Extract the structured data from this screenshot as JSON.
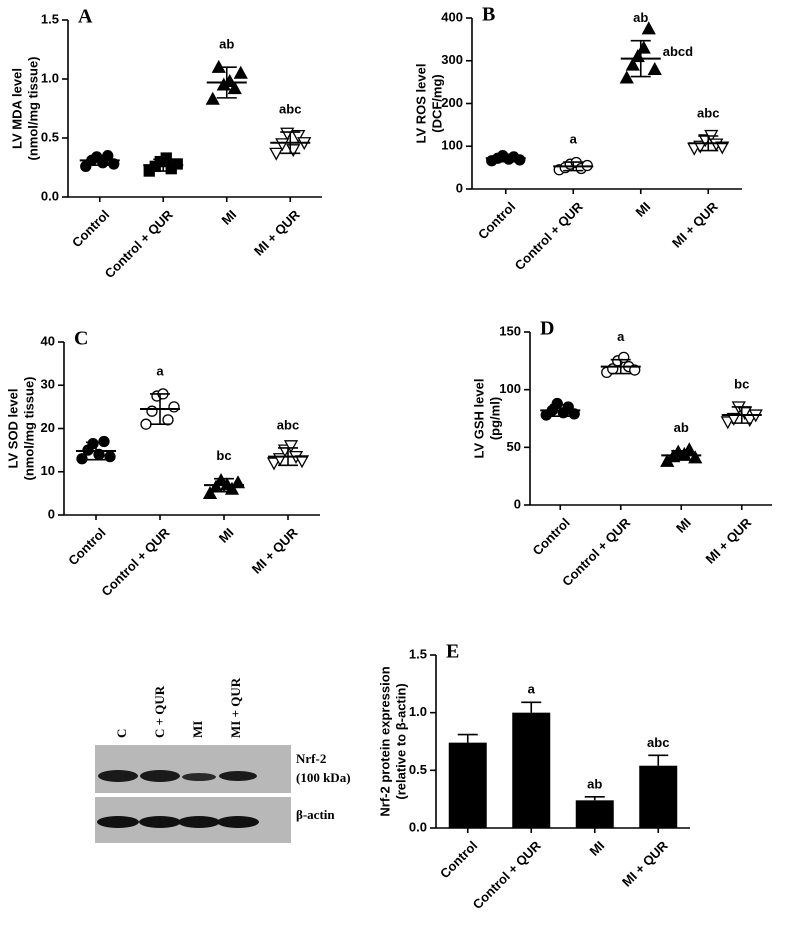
{
  "chart_data": [
    {
      "type": "dotplot",
      "panel": "A",
      "ylabel": [
        "LV MDA level",
        "(nmol/mg tissue)"
      ],
      "categories": [
        "Control",
        "Control + QUR",
        "MI",
        "MI + QUR"
      ],
      "markers": [
        "circle",
        "square",
        "triangle",
        "triangle-down"
      ],
      "filled": [
        true,
        true,
        true,
        false
      ],
      "points": [
        [
          0.26,
          0.31,
          0.34,
          0.29,
          0.35,
          0.28
        ],
        [
          0.22,
          0.26,
          0.3,
          0.33,
          0.24,
          0.28
        ],
        [
          0.83,
          1.1,
          0.95,
          0.98,
          0.92,
          1.05
        ],
        [
          0.37,
          0.45,
          0.54,
          0.4,
          0.52,
          0.46
        ]
      ],
      "means": [
        0.31,
        0.27,
        0.97,
        0.46
      ],
      "sds": [
        0.04,
        0.05,
        0.13,
        0.09
      ],
      "annotations": [
        null,
        null,
        "ab",
        "abc"
      ],
      "ylim": [
        0,
        1.5
      ],
      "yticks": [
        {
          "value": 0,
          "label": "0.0"
        },
        {
          "value": 0.5,
          "label": "0.5"
        },
        {
          "value": 1,
          "label": "1.0"
        },
        {
          "value": 1.5,
          "label": "1.5"
        }
      ]
    },
    {
      "type": "dotplot",
      "panel": "B",
      "ylabel": [
        "LV ROS level",
        "(DCF/mg)"
      ],
      "categories": [
        "Control",
        "Control + QUR",
        "MI",
        "MI + QUR"
      ],
      "markers": [
        "circle",
        "circle",
        "triangle",
        "triangle-down"
      ],
      "filled": [
        true,
        false,
        true,
        false
      ],
      "points": [
        [
          66,
          72,
          78,
          70,
          75,
          68
        ],
        [
          45,
          50,
          58,
          62,
          48,
          55
        ],
        [
          260,
          290,
          310,
          330,
          375,
          280
        ],
        [
          95,
          100,
          115,
          125,
          105,
          98
        ]
      ],
      "means": [
        72,
        53,
        305,
        107
      ],
      "sds": [
        8,
        10,
        42,
        17
      ],
      "annotations": [
        null,
        "a",
        "ab",
        "abc"
      ],
      "side_note": "abcd",
      "ylim": [
        0,
        400
      ],
      "yticks": [
        0,
        100,
        200,
        300,
        400
      ]
    },
    {
      "type": "dotplot",
      "panel": "C",
      "ylabel": [
        "LV SOD level",
        "(nmol/mg tissue)"
      ],
      "categories": [
        "Control",
        "Control + QUR",
        "MI",
        "MI + QUR"
      ],
      "markers": [
        "circle",
        "circle",
        "triangle",
        "triangle-down"
      ],
      "filled": [
        true,
        false,
        true,
        false
      ],
      "points": [
        [
          13,
          15,
          16.5,
          14,
          17,
          13.5
        ],
        [
          21,
          24,
          27.5,
          28,
          22,
          25
        ],
        [
          5,
          6.5,
          8,
          7,
          6,
          7.5
        ],
        [
          12,
          13,
          15,
          16,
          13.5,
          12.5
        ]
      ],
      "means": [
        14.8,
        24.5,
        6.9,
        13.5
      ],
      "sds": [
        2,
        3.5,
        1.5,
        2
      ],
      "annotations": [
        null,
        "a",
        "bc",
        "abc"
      ],
      "ylim": [
        0,
        40
      ],
      "yticks": [
        0,
        10,
        20,
        30,
        40
      ]
    },
    {
      "type": "dotplot",
      "panel": "D",
      "ylabel": [
        "LV GSH  level",
        "(pg/ml)"
      ],
      "categories": [
        "Control",
        "Control + QUR",
        "MI",
        "MI + QUR"
      ],
      "markers": [
        "circle",
        "circle",
        "triangle",
        "triangle-down"
      ],
      "filled": [
        true,
        false,
        true,
        false
      ],
      "points": [
        [
          78,
          82,
          88,
          80,
          85,
          79
        ],
        [
          115,
          118,
          125,
          128,
          120,
          117
        ],
        [
          38,
          42,
          46,
          44,
          48,
          41
        ],
        [
          72,
          75,
          85,
          80,
          74,
          78
        ]
      ],
      "means": [
        82,
        120,
        43,
        78
      ],
      "sds": [
        5,
        6,
        4,
        7
      ],
      "annotations": [
        null,
        "a",
        "ab",
        "bc"
      ],
      "ylim": [
        0,
        150
      ],
      "yticks": [
        0,
        50,
        100,
        150
      ]
    },
    {
      "type": "bar",
      "panel": "E",
      "ylabel": [
        "Nrf-2 protein expression",
        "(relative to β-actin)"
      ],
      "categories": [
        "Control",
        "Control + QUR",
        "MI",
        "MI + QUR"
      ],
      "values": [
        0.74,
        1.0,
        0.24,
        0.54
      ],
      "errors": [
        0.07,
        0.09,
        0.03,
        0.09
      ],
      "color": "#000000",
      "annotations": [
        null,
        "a",
        "ab",
        "abc"
      ],
      "ylim": [
        0,
        1.5
      ],
      "yticks": [
        {
          "value": 0,
          "label": "0.0"
        },
        {
          "value": 0.5,
          "label": "0.5"
        },
        {
          "value": 1,
          "label": "1.0"
        },
        {
          "value": 1.5,
          "label": "1.5"
        }
      ]
    }
  ],
  "blot": {
    "lanes": [
      "C",
      "C + QUR",
      "MI",
      "MI + QUR"
    ],
    "bands": [
      "Nrf-2",
      "(100 kDa)",
      "β-actin"
    ]
  }
}
